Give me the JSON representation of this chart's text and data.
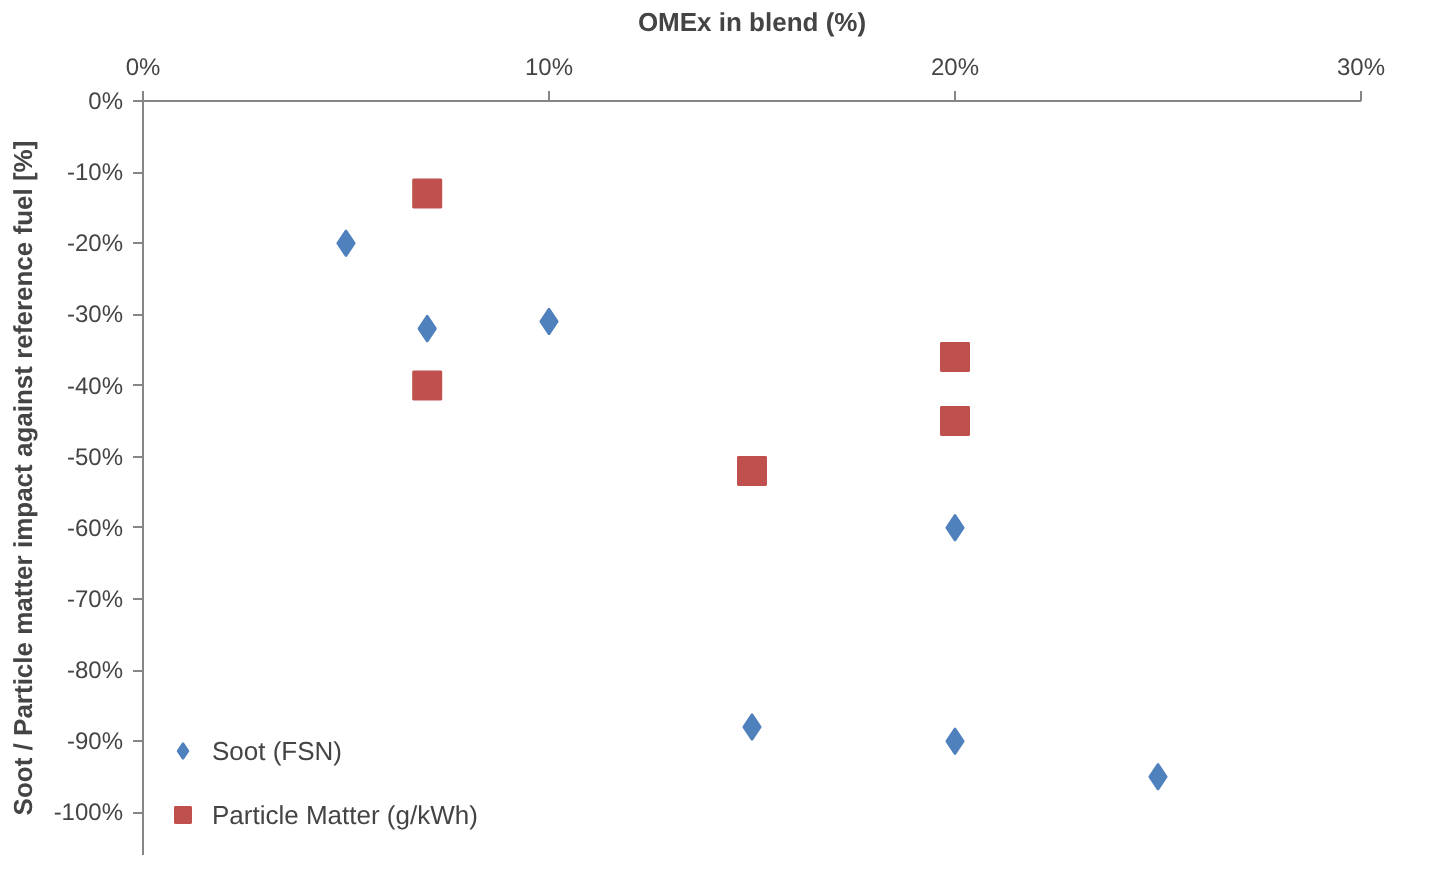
{
  "chart_data": {
    "type": "scatter",
    "xlabel": "OMEx in blend (%)",
    "ylabel": "Soot / Particle matter impact against reference fuel [%]",
    "xlim": [
      0,
      30
    ],
    "xticks": [
      {
        "value": 0,
        "label": "0%"
      },
      {
        "value": 10,
        "label": "10%"
      },
      {
        "value": 20,
        "label": "20%"
      },
      {
        "value": 30,
        "label": "30%"
      }
    ],
    "ylim": [
      -106,
      0
    ],
    "yticks": [
      {
        "value": 0,
        "label": "0%"
      },
      {
        "value": -10,
        "label": "-10%"
      },
      {
        "value": -20,
        "label": "-20%"
      },
      {
        "value": -30,
        "label": "-30%"
      },
      {
        "value": -40,
        "label": "-40%"
      },
      {
        "value": -50,
        "label": "-50%"
      },
      {
        "value": -60,
        "label": "-60%"
      },
      {
        "value": -70,
        "label": "-70%"
      },
      {
        "value": -80,
        "label": "-80%"
      },
      {
        "value": -90,
        "label": "-90%"
      },
      {
        "value": -100,
        "label": "-100%"
      }
    ],
    "grid": false,
    "legend": "bottom left",
    "series": [
      {
        "name": "Soot (FSN)",
        "color": "#4f81bd",
        "marker": "diamond",
        "x": [
          5,
          7,
          10,
          15,
          20,
          20,
          25
        ],
        "values": [
          -20,
          -32,
          -31,
          -88,
          -60,
          -90,
          -95
        ]
      },
      {
        "name": "Particle Matter (g/kWh)",
        "color": "#c0504d",
        "marker": "square",
        "x": [
          7,
          7,
          15,
          20,
          20
        ],
        "values": [
          -13,
          -40,
          -52,
          -36,
          -45
        ]
      }
    ]
  }
}
